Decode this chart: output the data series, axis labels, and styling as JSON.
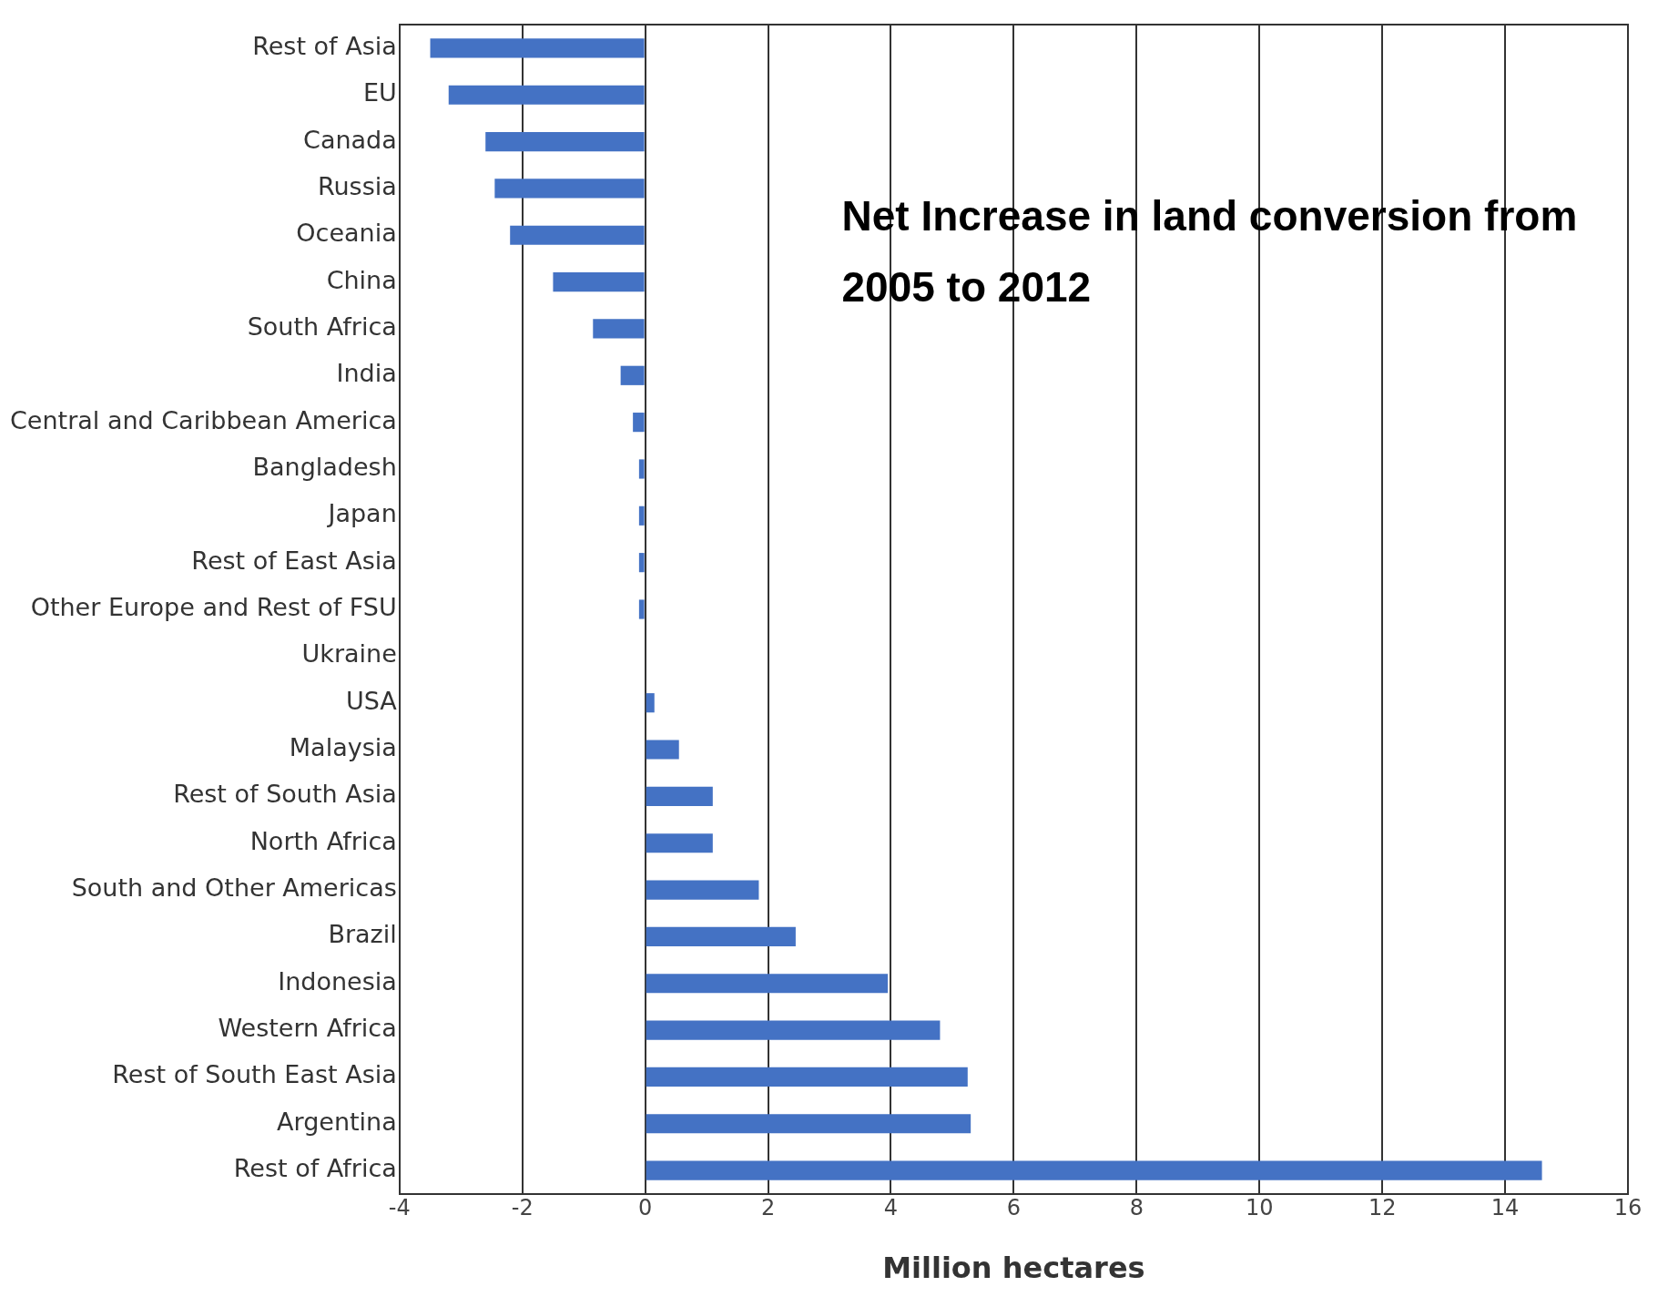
{
  "chart_data": {
    "type": "bar",
    "orientation": "horizontal",
    "title": "Net Increase in land conversion from 2005 to 2012",
    "xlabel": "Million hectares",
    "categories": [
      "Rest of Asia",
      "EU",
      "Canada",
      "Russia",
      "Oceania",
      "China",
      "South Africa",
      "India",
      "Central and Caribbean America",
      "Bangladesh",
      "Japan",
      "Rest of East Asia",
      "Other Europe and Rest of FSU",
      "Ukraine",
      "USA",
      "Malaysia",
      "Rest of South Asia",
      "North Africa",
      "South and Other Americas",
      "Brazil",
      "Indonesia",
      "Western Africa",
      "Rest of South East Asia",
      "Argentina",
      "Rest of Africa"
    ],
    "values": [
      -3.5,
      -3.2,
      -2.6,
      -2.45,
      -2.2,
      -1.5,
      -0.85,
      -0.4,
      -0.2,
      -0.1,
      -0.1,
      -0.1,
      -0.1,
      0,
      0.15,
      0.55,
      1.1,
      1.1,
      1.85,
      2.45,
      3.95,
      4.8,
      5.25,
      5.3,
      14.6
    ],
    "color": "#4472c4",
    "xlim": [
      -4,
      16
    ],
    "xticks": [
      -4,
      -2,
      0,
      2,
      4,
      6,
      8,
      10,
      12,
      14,
      16
    ],
    "grid": "x",
    "legend": false
  }
}
